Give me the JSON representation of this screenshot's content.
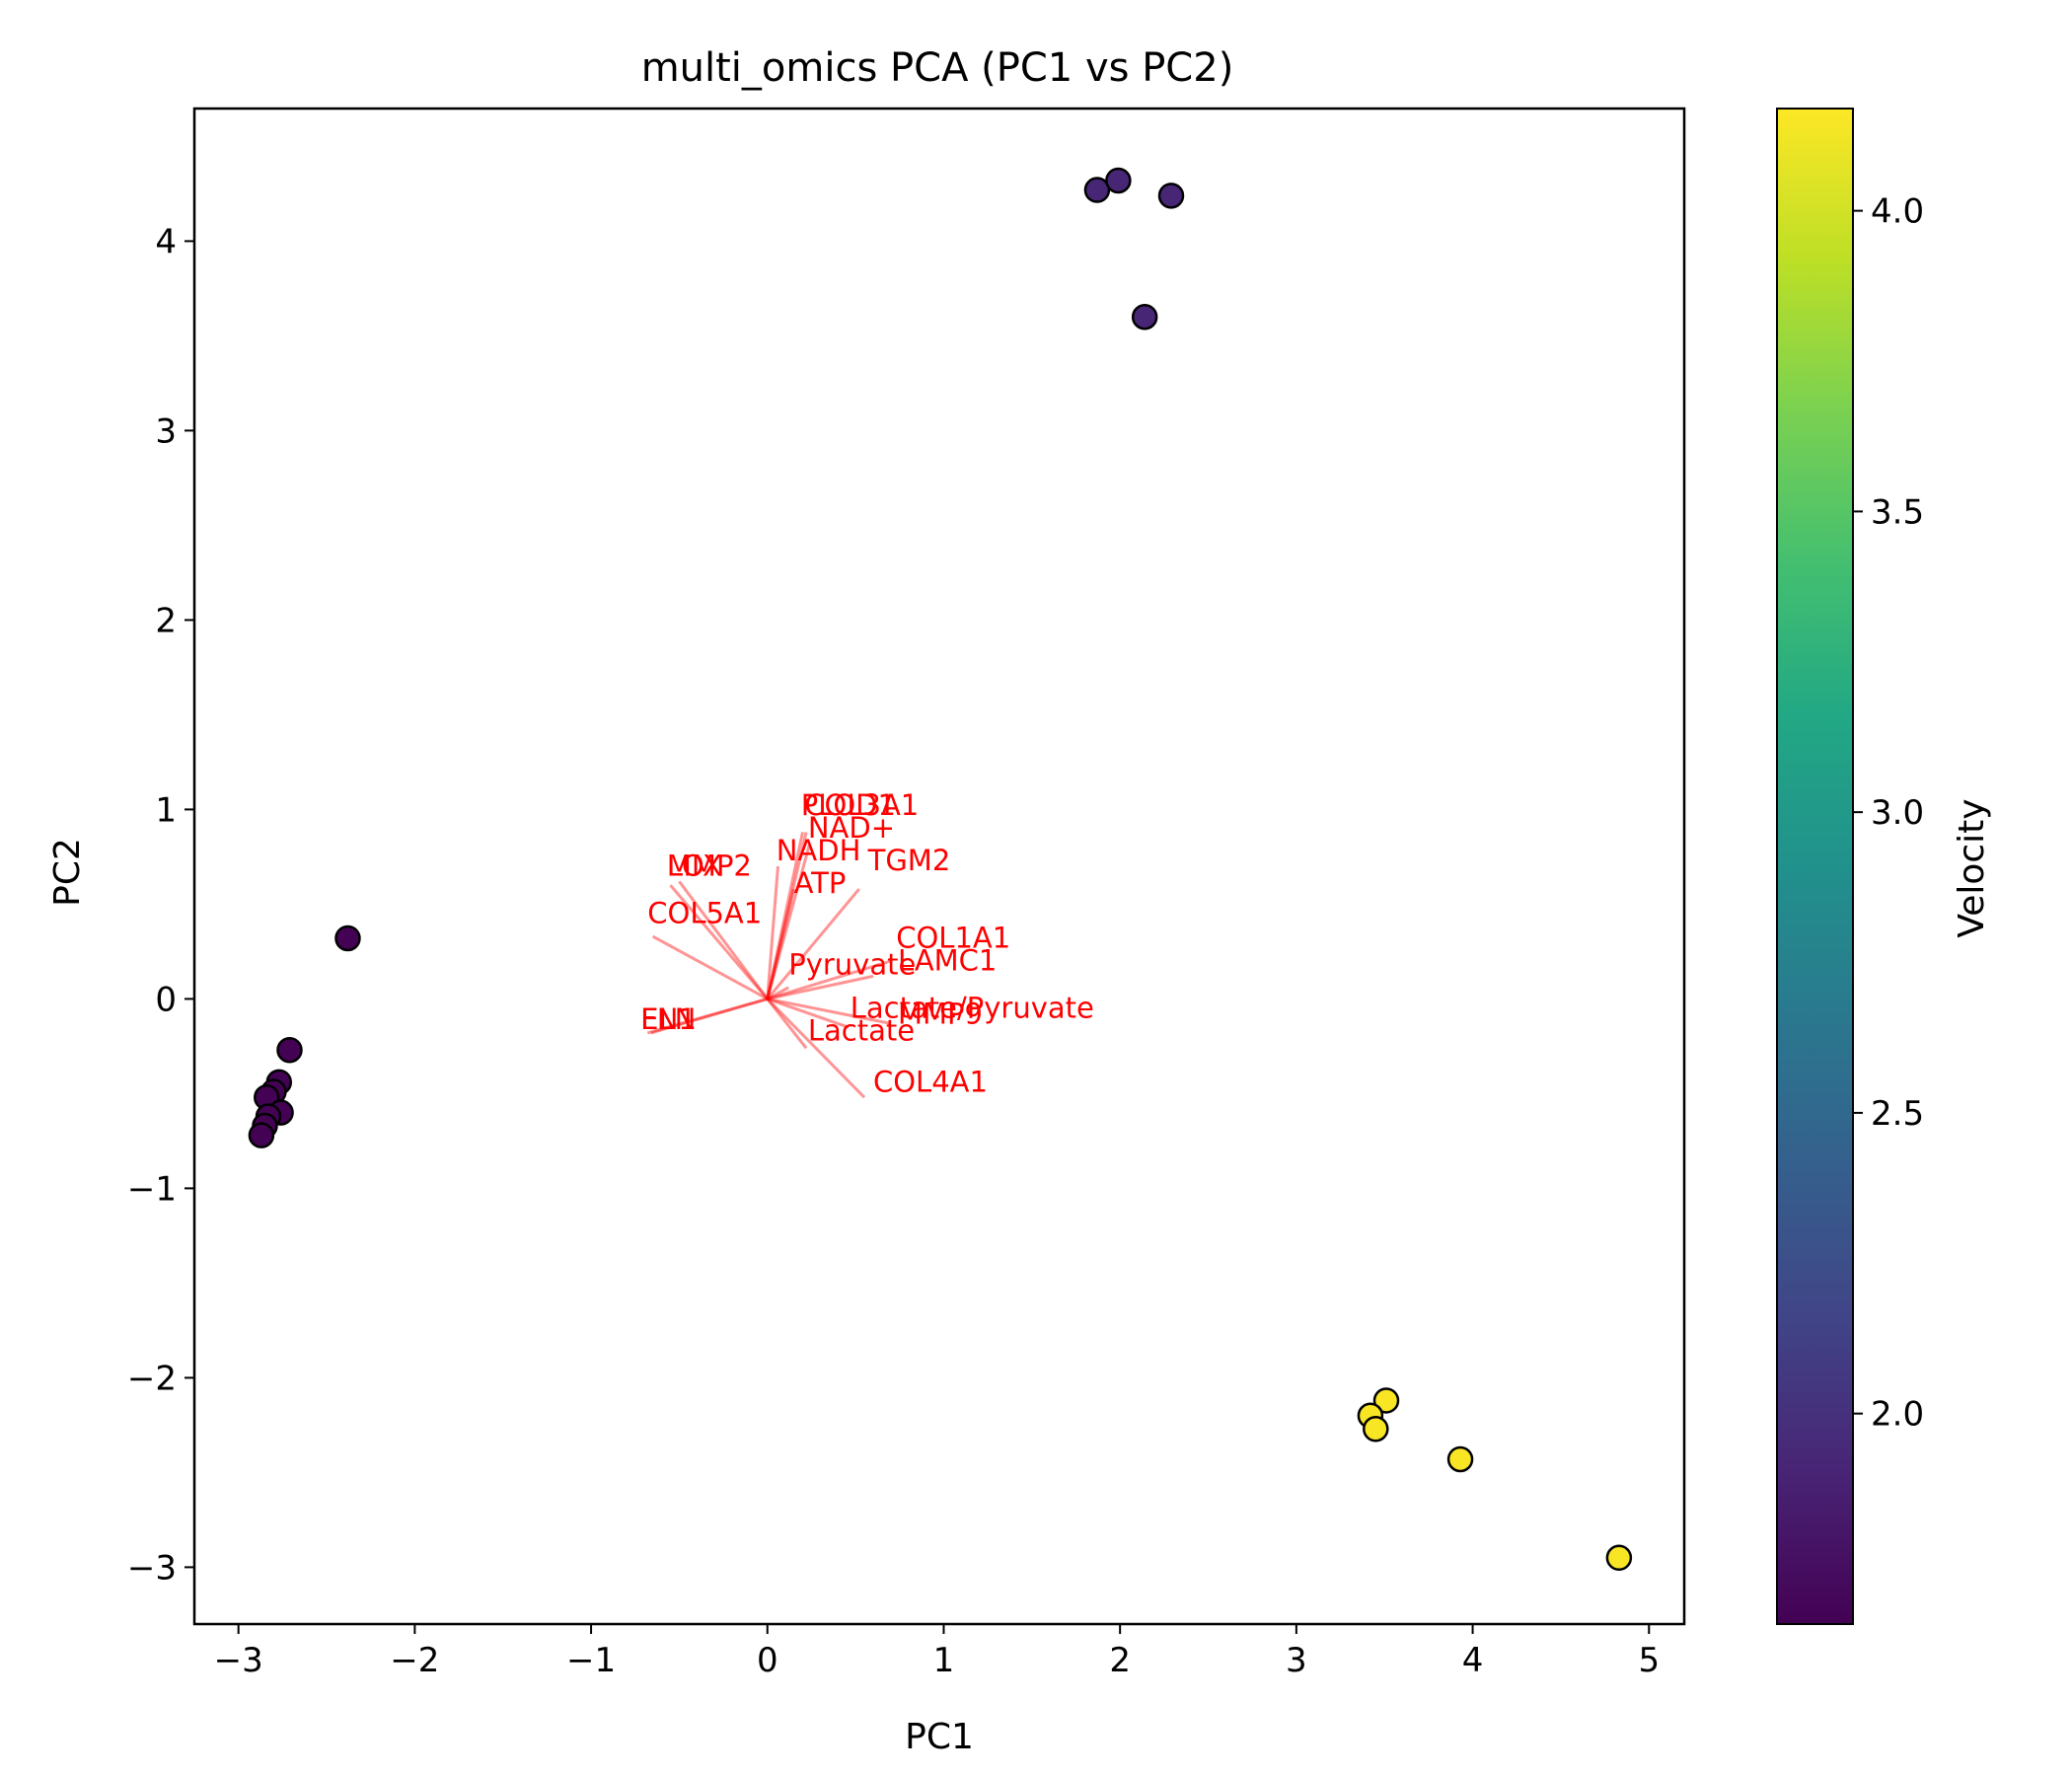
{
  "chart_data": {
    "type": "scatter",
    "title": "multi_omics PCA (PC1 vs PC2)",
    "xlabel": "PC1",
    "ylabel": "PC2",
    "xlim": [
      -3.25,
      5.2
    ],
    "ylim": [
      -3.3,
      4.7
    ],
    "xticks": [
      -3,
      -2,
      -1,
      0,
      1,
      2,
      3,
      4,
      5
    ],
    "xtick_labels": [
      "−3",
      "−2",
      "−1",
      "0",
      "1",
      "2",
      "3",
      "4",
      "5"
    ],
    "yticks": [
      -3,
      -2,
      -1,
      0,
      1,
      2,
      3,
      4
    ],
    "ytick_labels": [
      "−3",
      "−2",
      "−1",
      "0",
      "1",
      "2",
      "3",
      "4"
    ],
    "grid": false,
    "colorbar": {
      "label": "Velocity",
      "min": 1.65,
      "max": 4.17,
      "ticks": [
        2.0,
        2.5,
        3.0,
        3.5,
        4.0
      ],
      "tick_labels": [
        "2.0",
        "2.5",
        "3.0",
        "3.5",
        "4.0"
      ],
      "colormap": "viridis"
    },
    "points": [
      {
        "x": 1.87,
        "y": 4.27,
        "c": 1.92
      },
      {
        "x": 1.99,
        "y": 4.32,
        "c": 1.92
      },
      {
        "x": 2.29,
        "y": 4.24,
        "c": 1.92
      },
      {
        "x": 2.14,
        "y": 3.6,
        "c": 1.92
      },
      {
        "x": -2.38,
        "y": 0.32,
        "c": 1.66
      },
      {
        "x": -2.71,
        "y": -0.27,
        "c": 1.66
      },
      {
        "x": -2.77,
        "y": -0.44,
        "c": 1.66
      },
      {
        "x": -2.8,
        "y": -0.49,
        "c": 1.66
      },
      {
        "x": -2.84,
        "y": -0.52,
        "c": 1.66
      },
      {
        "x": -2.76,
        "y": -0.6,
        "c": 1.66
      },
      {
        "x": -2.83,
        "y": -0.62,
        "c": 1.66
      },
      {
        "x": -2.85,
        "y": -0.67,
        "c": 1.66
      },
      {
        "x": -2.87,
        "y": -0.72,
        "c": 1.66
      },
      {
        "x": 3.51,
        "y": -2.12,
        "c": 4.15
      },
      {
        "x": 3.42,
        "y": -2.2,
        "c": 4.15
      },
      {
        "x": 3.45,
        "y": -2.27,
        "c": 4.15
      },
      {
        "x": 3.93,
        "y": -2.43,
        "c": 4.15
      },
      {
        "x": 4.83,
        "y": -2.95,
        "c": 4.15
      }
    ],
    "loadings": [
      {
        "label": "PLOD1",
        "x": 0.2,
        "y": 0.88,
        "lx": 0.19,
        "ly": 0.97
      },
      {
        "label": "COL3A1",
        "x": 0.22,
        "y": 0.88,
        "lx": 0.21,
        "ly": 0.97
      },
      {
        "label": "NAD+",
        "x": 0.24,
        "y": 0.82,
        "lx": 0.23,
        "ly": 0.85
      },
      {
        "label": "NADH",
        "x": 0.06,
        "y": 0.7,
        "lx": 0.05,
        "ly": 0.73
      },
      {
        "label": "TGM2",
        "x": 0.52,
        "y": 0.58,
        "lx": 0.57,
        "ly": 0.68
      },
      {
        "label": "ATP",
        "x": 0.15,
        "y": 0.58,
        "lx": 0.15,
        "ly": 0.56
      },
      {
        "label": "LOX",
        "x": -0.55,
        "y": 0.6,
        "lx": -0.57,
        "ly": 0.65
      },
      {
        "label": "MMP2",
        "x": -0.5,
        "y": 0.62,
        "lx": -0.57,
        "ly": 0.65
      },
      {
        "label": "COL5A1",
        "x": -0.65,
        "y": 0.33,
        "lx": -0.68,
        "ly": 0.4
      },
      {
        "label": "COL1A1",
        "x": 0.7,
        "y": 0.2,
        "lx": 0.73,
        "ly": 0.27
      },
      {
        "label": "LAMC1",
        "x": 0.6,
        "y": 0.12,
        "lx": 0.74,
        "ly": 0.15
      },
      {
        "label": "Pyruvate",
        "x": 0.12,
        "y": 0.06,
        "lx": 0.12,
        "ly": 0.13
      },
      {
        "label": "Lactate/Pyruvate",
        "x": 0.46,
        "y": -0.15,
        "lx": 0.47,
        "ly": -0.1
      },
      {
        "label": "MMP9",
        "x": 0.7,
        "y": -0.13,
        "lx": 0.74,
        "ly": -0.13
      },
      {
        "label": "Lactate",
        "x": 0.22,
        "y": -0.26,
        "lx": 0.23,
        "ly": -0.22
      },
      {
        "label": "COL4A1",
        "x": 0.55,
        "y": -0.52,
        "lx": 0.6,
        "ly": -0.49
      },
      {
        "label": "ELN",
        "x": -0.68,
        "y": -0.18,
        "lx": -0.72,
        "ly": -0.16
      },
      {
        "label": "FN1",
        "x": -0.66,
        "y": -0.18,
        "lx": -0.72,
        "ly": -0.16
      }
    ]
  }
}
